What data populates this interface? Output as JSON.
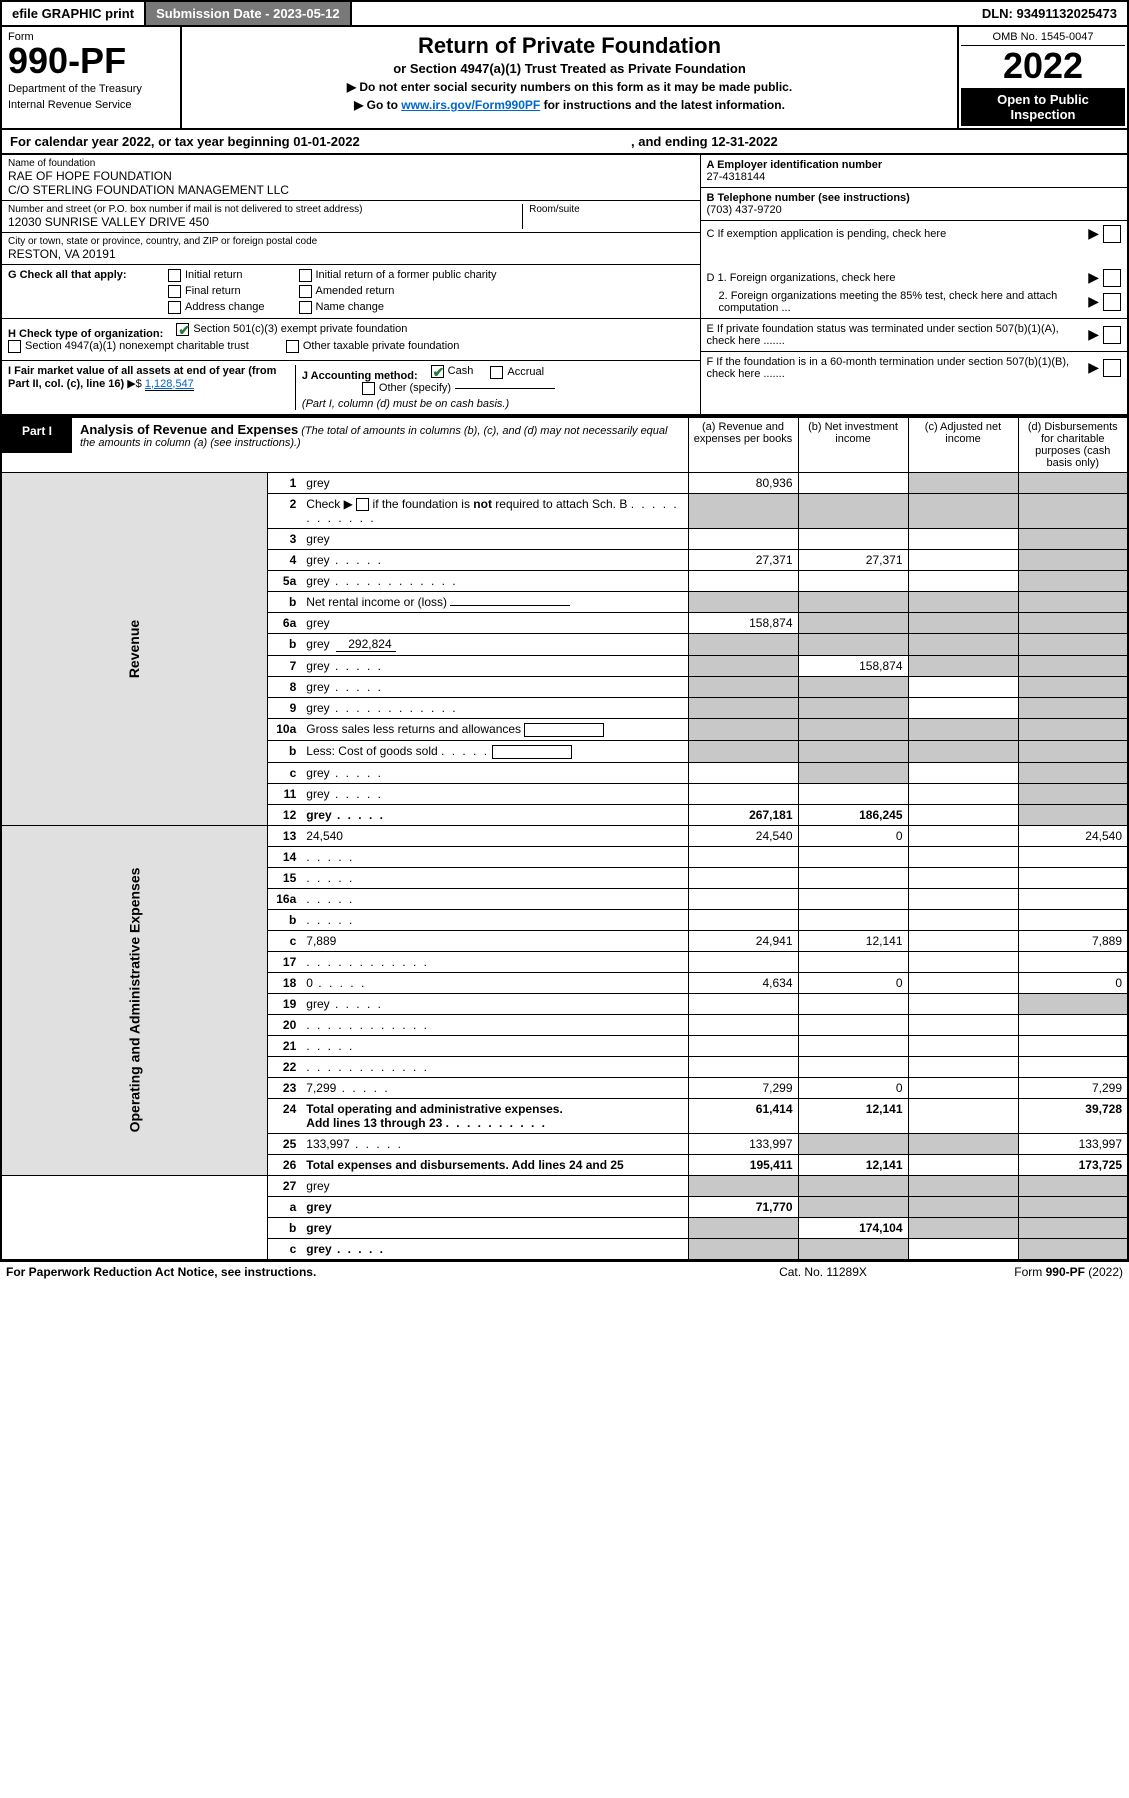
{
  "topbar": {
    "efile": "efile GRAPHIC print",
    "submission_label": "Submission Date - 2023-05-12",
    "dln_label": "DLN: 93491132025473"
  },
  "header": {
    "form_label": "Form",
    "form_number": "990-PF",
    "dept1": "Department of the Treasury",
    "dept2": "Internal Revenue Service",
    "title": "Return of Private Foundation",
    "subtitle": "or Section 4947(a)(1) Trust Treated as Private Foundation",
    "note1": "▶ Do not enter social security numbers on this form as it may be made public.",
    "note2_pre": "▶ Go to ",
    "note2_link": "www.irs.gov/Form990PF",
    "note2_post": " for instructions and the latest information.",
    "omb": "OMB No. 1545-0047",
    "year": "2022",
    "open_pub": "Open to Public Inspection"
  },
  "cal": {
    "line_a": "For calendar year 2022, or tax year beginning 01-01-2022",
    "line_b": ", and ending 12-31-2022"
  },
  "addr": {
    "name_lbl": "Name of foundation",
    "name1": "RAE OF HOPE FOUNDATION",
    "name2": "C/O STERLING FOUNDATION MANAGEMENT LLC",
    "street_lbl": "Number and street (or P.O. box number if mail is not delivered to street address)",
    "street": "12030 SUNRISE VALLEY DRIVE 450",
    "room_lbl": "Room/suite",
    "city_lbl": "City or town, state or province, country, and ZIP or foreign postal code",
    "city": "RESTON, VA  20191",
    "a_lbl": "A Employer identification number",
    "a_val": "27-4318144",
    "b_lbl": "B Telephone number (see instructions)",
    "b_val": "(703) 437-9720",
    "c_lbl": "C If exemption application is pending, check here",
    "d1_lbl": "D 1. Foreign organizations, check here",
    "d2_lbl": "2. Foreign organizations meeting the 85% test, check here and attach computation ...",
    "e_lbl": "E  If private foundation status was terminated under section 507(b)(1)(A), check here .......",
    "f_lbl": "F  If the foundation is in a 60-month termination under section 507(b)(1)(B), check here ......."
  },
  "g": {
    "label": "G Check all that apply:",
    "opts": [
      "Initial return",
      "Final return",
      "Address change",
      "Initial return of a former public charity",
      "Amended return",
      "Name change"
    ]
  },
  "h": {
    "label": "H Check type of organization:",
    "opt1": "Section 501(c)(3) exempt private foundation",
    "opt2": "Section 4947(a)(1) nonexempt charitable trust",
    "opt3": "Other taxable private foundation"
  },
  "i": {
    "label": "I Fair market value of all assets at end of year (from Part II, col. (c), line 16)",
    "arrow": "▶$",
    "val": "1,128,547"
  },
  "j": {
    "label": "J Accounting method:",
    "cash": "Cash",
    "accrual": "Accrual",
    "other": "Other (specify)",
    "note": "(Part I, column (d) must be on cash basis.)"
  },
  "part1": {
    "label": "Part I",
    "title": "Analysis of Revenue and Expenses",
    "title_note": "(The total of amounts in columns (b), (c), and (d) may not necessarily equal the amounts in column (a) (see instructions).)",
    "col_a": "(a)   Revenue and expenses per books",
    "col_b": "(b)   Net investment income",
    "col_c": "(c)   Adjusted net income",
    "col_d": "(d)   Disbursements for charitable purposes (cash basis only)"
  },
  "side": {
    "rev": "Revenue",
    "ops": "Operating and Administrative Expenses"
  },
  "rows": {
    "r1": {
      "n": "1",
      "d": "grey",
      "a": "80,936",
      "b": "",
      "c": "grey"
    },
    "r2": {
      "n": "2",
      "d": "grey",
      "a": "grey",
      "b": "grey",
      "c": "grey"
    },
    "r3": {
      "n": "3",
      "d": "grey",
      "a": "",
      "b": "",
      "c": ""
    },
    "r4": {
      "n": "4",
      "d": "grey",
      "a": "27,371",
      "b": "27,371",
      "c": ""
    },
    "r5a": {
      "n": "5a",
      "d": "grey",
      "a": "",
      "b": "",
      "c": ""
    },
    "r5b": {
      "n": "b",
      "d": "grey",
      "a": "grey",
      "b": "grey",
      "c": "grey"
    },
    "r6a": {
      "n": "6a",
      "d": "grey",
      "a": "158,874",
      "b": "grey",
      "c": "grey"
    },
    "r6b": {
      "n": "b",
      "d": "grey",
      "sub": "292,824",
      "a": "grey",
      "b": "grey",
      "c": "grey"
    },
    "r7": {
      "n": "7",
      "d": "grey",
      "a": "grey",
      "b": "158,874",
      "c": "grey"
    },
    "r8": {
      "n": "8",
      "d": "grey",
      "a": "grey",
      "b": "grey",
      "c": ""
    },
    "r9": {
      "n": "9",
      "d": "grey",
      "a": "grey",
      "b": "grey",
      "c": ""
    },
    "r10a": {
      "n": "10a",
      "d": "grey",
      "a": "grey",
      "b": "grey",
      "c": "grey"
    },
    "r10b": {
      "n": "b",
      "d": "grey",
      "a": "grey",
      "b": "grey",
      "c": "grey"
    },
    "r10c": {
      "n": "c",
      "d": "grey",
      "a": "",
      "b": "grey",
      "c": ""
    },
    "r11": {
      "n": "11",
      "d": "grey",
      "a": "",
      "b": "",
      "c": ""
    },
    "r12": {
      "n": "12",
      "d": "grey",
      "a": "267,181",
      "b": "186,245",
      "c": "",
      "bold": true
    },
    "r13": {
      "n": "13",
      "d": "24,540",
      "a": "24,540",
      "b": "0",
      "c": ""
    },
    "r14": {
      "n": "14",
      "d": "",
      "a": "",
      "b": "",
      "c": ""
    },
    "r15": {
      "n": "15",
      "d": "",
      "a": "",
      "b": "",
      "c": ""
    },
    "r16a": {
      "n": "16a",
      "d": "",
      "a": "",
      "b": "",
      "c": ""
    },
    "r16b": {
      "n": "b",
      "d": "",
      "a": "",
      "b": "",
      "c": ""
    },
    "r16c": {
      "n": "c",
      "d": "7,889",
      "a": "24,941",
      "b": "12,141",
      "c": ""
    },
    "r17": {
      "n": "17",
      "d": "",
      "a": "",
      "b": "",
      "c": ""
    },
    "r18": {
      "n": "18",
      "d": "0",
      "a": "4,634",
      "b": "0",
      "c": ""
    },
    "r19": {
      "n": "19",
      "d": "grey",
      "a": "",
      "b": "",
      "c": ""
    },
    "r20": {
      "n": "20",
      "d": "",
      "a": "",
      "b": "",
      "c": ""
    },
    "r21": {
      "n": "21",
      "d": "",
      "a": "",
      "b": "",
      "c": ""
    },
    "r22": {
      "n": "22",
      "d": "",
      "a": "",
      "b": "",
      "c": ""
    },
    "r23": {
      "n": "23",
      "d": "7,299",
      "a": "7,299",
      "b": "0",
      "c": ""
    },
    "r24": {
      "n": "24",
      "d": "39,728",
      "a": "61,414",
      "b": "12,141",
      "c": "",
      "bold": true
    },
    "r25": {
      "n": "25",
      "d": "133,997",
      "a": "133,997",
      "b": "grey",
      "c": "grey"
    },
    "r26": {
      "n": "26",
      "d": "173,725",
      "a": "195,411",
      "b": "12,141",
      "c": "",
      "bold": true
    },
    "r27": {
      "n": "27",
      "d": "grey",
      "a": "grey",
      "b": "grey",
      "c": "grey"
    },
    "r27a": {
      "n": "a",
      "d": "grey",
      "a": "71,770",
      "b": "grey",
      "c": "grey",
      "bold": true
    },
    "r27b": {
      "n": "b",
      "d": "grey",
      "a": "grey",
      "b": "174,104",
      "c": "grey",
      "bold": true
    },
    "r27c": {
      "n": "c",
      "d": "grey",
      "a": "grey",
      "b": "grey",
      "c": "",
      "bold": true
    }
  },
  "footer": {
    "left": "For Paperwork Reduction Act Notice, see instructions.",
    "mid": "Cat. No. 11289X",
    "right": "Form 990-PF (2022)"
  },
  "colors": {
    "grey_cell": "#c8c8c8",
    "side_bg": "#e0e0e0",
    "link": "#0066cc",
    "check_green": "#2a7a3a",
    "dark_btn": "#787878"
  }
}
